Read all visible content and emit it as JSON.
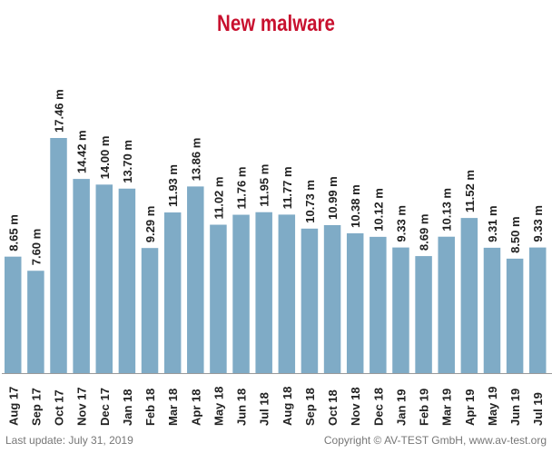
{
  "colors": {
    "bar": "#7fabc6",
    "title": "#c8102e",
    "text": "#222222",
    "axis": "#9a9a9a",
    "footer": "#777777"
  },
  "chart_data": {
    "type": "bar",
    "title": "New malware",
    "xlabel": "",
    "ylabel": "",
    "ylim": [
      0,
      17.46
    ],
    "grid": false,
    "legend": "none",
    "categories": [
      "Aug 17",
      "Sep 17",
      "Oct 17",
      "Nov 17",
      "Dec 17",
      "Jan 18",
      "Feb 18",
      "Mar 18",
      "Apr 18",
      "May 18",
      "Jun 18",
      "Jul 18",
      "Aug 18",
      "Sep 18",
      "Oct 18",
      "Nov 18",
      "Dec 18",
      "Jan 19",
      "Feb 19",
      "Mar 19",
      "Apr 19",
      "May 19",
      "Jun 19",
      "Jul 19"
    ],
    "values": [
      8.65,
      7.6,
      17.46,
      14.42,
      14.0,
      13.7,
      9.29,
      11.93,
      13.86,
      11.02,
      11.76,
      11.95,
      11.77,
      10.73,
      10.99,
      10.38,
      10.12,
      9.33,
      8.69,
      10.13,
      11.52,
      9.31,
      8.5,
      9.33
    ],
    "value_labels": [
      "8.65 m",
      "7.60 m",
      "17.46 m",
      "14.42 m",
      "14.00 m",
      "13.70 m",
      "9.29 m",
      "11.93 m",
      "13.86 m",
      "11.02 m",
      "11.76 m",
      "11.95 m",
      "11.77 m",
      "10.73 m",
      "10.99 m",
      "10.38 m",
      "10.12 m",
      "9.33 m",
      "8.69 m",
      "10.13 m",
      "11.52 m",
      "9.31 m",
      "8.50 m",
      "9.33 m"
    ]
  },
  "footer": {
    "last_update": "Last update: July 31, 2019",
    "copyright": "Copyright © AV-TEST GmbH, www.av-test.org"
  }
}
